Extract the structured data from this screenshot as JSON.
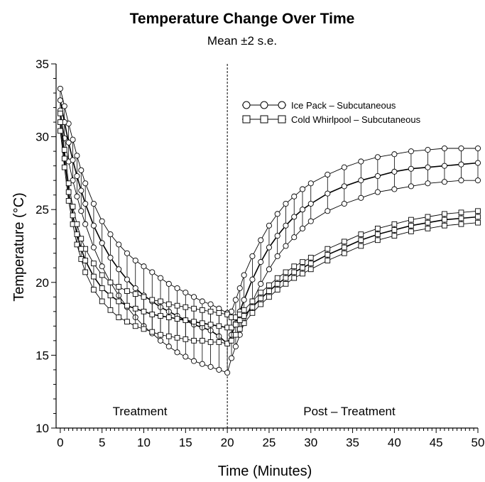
{
  "chart_data": {
    "type": "line",
    "title": "Temperature Change Over Time",
    "subtitle": "Mean ±2 s.e.",
    "xlabel": "Time (Minutes)",
    "ylabel": "Temperature (°C)",
    "xlim": [
      -0.5,
      50
    ],
    "ylim": [
      10,
      35
    ],
    "x_ticks": [
      0,
      5,
      10,
      15,
      20,
      25,
      30,
      35,
      40,
      45,
      50
    ],
    "x_tick_labels": [
      "0",
      "5",
      "10",
      "15",
      "20",
      "25",
      "30",
      "35",
      "40",
      "45",
      "50"
    ],
    "y_ticks": [
      10,
      15,
      20,
      25,
      30,
      35
    ],
    "y_tick_labels": [
      "10",
      "15",
      "20",
      "25",
      "30",
      "35"
    ],
    "x_minor_step": 0.5,
    "y_minor_step": 1,
    "grid": false,
    "legend_position": "top-right",
    "annotations": [
      {
        "text": "Treatment",
        "x": 10.5,
        "y": 11.1
      },
      {
        "text": "Post – Treatment",
        "x": 35,
        "y": 11.1
      }
    ],
    "reference_line": {
      "x": 20,
      "style": "dashed"
    },
    "series": [
      {
        "name": "Ice Pack – Subcutaneous",
        "marker": "circle",
        "x": [
          0,
          0.5,
          1,
          1.5,
          2,
          2.5,
          3,
          4,
          5,
          6,
          7,
          8,
          9,
          10,
          11,
          12,
          13,
          14,
          15,
          16,
          17,
          18,
          19,
          20,
          20.5,
          21,
          21.5,
          22,
          23,
          24,
          25,
          26,
          27,
          28,
          29,
          30,
          32,
          34,
          36,
          38,
          40,
          42,
          44,
          46,
          48,
          50
        ],
        "y": [
          32.5,
          31.0,
          29.6,
          28.4,
          27.3,
          26.3,
          25.4,
          23.9,
          22.7,
          21.7,
          20.9,
          20.2,
          19.6,
          19.1,
          18.7,
          18.3,
          18.0,
          17.7,
          17.4,
          17.1,
          16.9,
          16.7,
          16.3,
          15.8,
          16.4,
          17.2,
          18.0,
          18.8,
          20.2,
          21.4,
          22.4,
          23.2,
          23.9,
          24.5,
          25.0,
          25.4,
          26.1,
          26.6,
          27.0,
          27.3,
          27.6,
          27.8,
          27.9,
          28.0,
          28.1,
          28.2
        ],
        "lower": [
          31.8,
          29.9,
          28.3,
          27.0,
          25.9,
          24.9,
          24.0,
          22.4,
          21.1,
          20.0,
          19.1,
          18.3,
          17.6,
          17.0,
          16.5,
          16.0,
          15.6,
          15.2,
          14.9,
          14.6,
          14.4,
          14.2,
          14.0,
          13.8,
          14.8,
          15.6,
          16.4,
          17.2,
          18.7,
          19.9,
          20.9,
          21.8,
          22.5,
          23.1,
          23.7,
          24.2,
          24.9,
          25.4,
          25.8,
          26.2,
          26.4,
          26.6,
          26.8,
          26.9,
          27.0,
          27.0
        ],
        "upper": [
          33.3,
          32.1,
          30.9,
          29.8,
          28.7,
          27.7,
          26.8,
          25.4,
          24.2,
          23.3,
          22.6,
          22.0,
          21.5,
          21.1,
          20.7,
          20.3,
          19.9,
          19.6,
          19.3,
          19.0,
          18.7,
          18.5,
          18.2,
          17.9,
          18.0,
          18.8,
          19.6,
          20.5,
          21.8,
          22.9,
          23.9,
          24.7,
          25.4,
          25.9,
          26.4,
          26.8,
          27.4,
          27.9,
          28.3,
          28.6,
          28.8,
          29.0,
          29.1,
          29.2,
          29.2,
          29.2
        ]
      },
      {
        "name": "Cold Whirlpool – Subcutaneous",
        "marker": "square",
        "x": [
          0,
          0.5,
          1,
          1.5,
          2,
          2.5,
          3,
          4,
          5,
          6,
          7,
          8,
          9,
          10,
          11,
          12,
          13,
          14,
          15,
          16,
          17,
          18,
          19,
          20,
          20.5,
          21,
          21.5,
          22,
          23,
          24,
          25,
          26,
          27,
          28,
          29,
          30,
          32,
          34,
          36,
          38,
          40,
          42,
          44,
          46,
          48,
          50
        ],
        "y": [
          31.0,
          28.5,
          26.2,
          24.6,
          23.3,
          22.3,
          21.5,
          20.4,
          19.6,
          19.1,
          18.7,
          18.4,
          18.2,
          18.0,
          17.8,
          17.7,
          17.6,
          17.5,
          17.4,
          17.3,
          17.2,
          17.1,
          17.0,
          16.9,
          16.9,
          17.1,
          17.4,
          17.7,
          18.3,
          18.9,
          19.4,
          19.9,
          20.3,
          20.7,
          21.0,
          21.3,
          21.9,
          22.4,
          22.9,
          23.3,
          23.6,
          23.9,
          24.1,
          24.3,
          24.4,
          24.5
        ],
        "lower": [
          30.4,
          27.9,
          25.6,
          24.0,
          22.6,
          21.6,
          20.7,
          19.5,
          18.7,
          18.1,
          17.6,
          17.3,
          17.0,
          16.8,
          16.6,
          16.4,
          16.3,
          16.2,
          16.1,
          16.0,
          16.0,
          15.9,
          15.9,
          15.8,
          16.0,
          16.4,
          16.8,
          17.2,
          17.9,
          18.5,
          19.0,
          19.5,
          19.9,
          20.3,
          20.6,
          20.9,
          21.5,
          22.0,
          22.5,
          22.9,
          23.2,
          23.5,
          23.7,
          23.9,
          24.0,
          24.1
        ],
        "upper": [
          31.6,
          29.1,
          26.8,
          25.2,
          24.0,
          23.0,
          22.3,
          21.3,
          20.5,
          20.0,
          19.7,
          19.4,
          19.2,
          19.0,
          18.8,
          18.7,
          18.5,
          18.4,
          18.3,
          18.2,
          18.1,
          18.0,
          17.9,
          17.8,
          17.6,
          17.6,
          17.8,
          18.1,
          18.7,
          19.3,
          19.8,
          20.3,
          20.7,
          21.1,
          21.4,
          21.7,
          22.3,
          22.8,
          23.3,
          23.7,
          24.0,
          24.3,
          24.5,
          24.7,
          24.8,
          24.9
        ]
      }
    ]
  }
}
